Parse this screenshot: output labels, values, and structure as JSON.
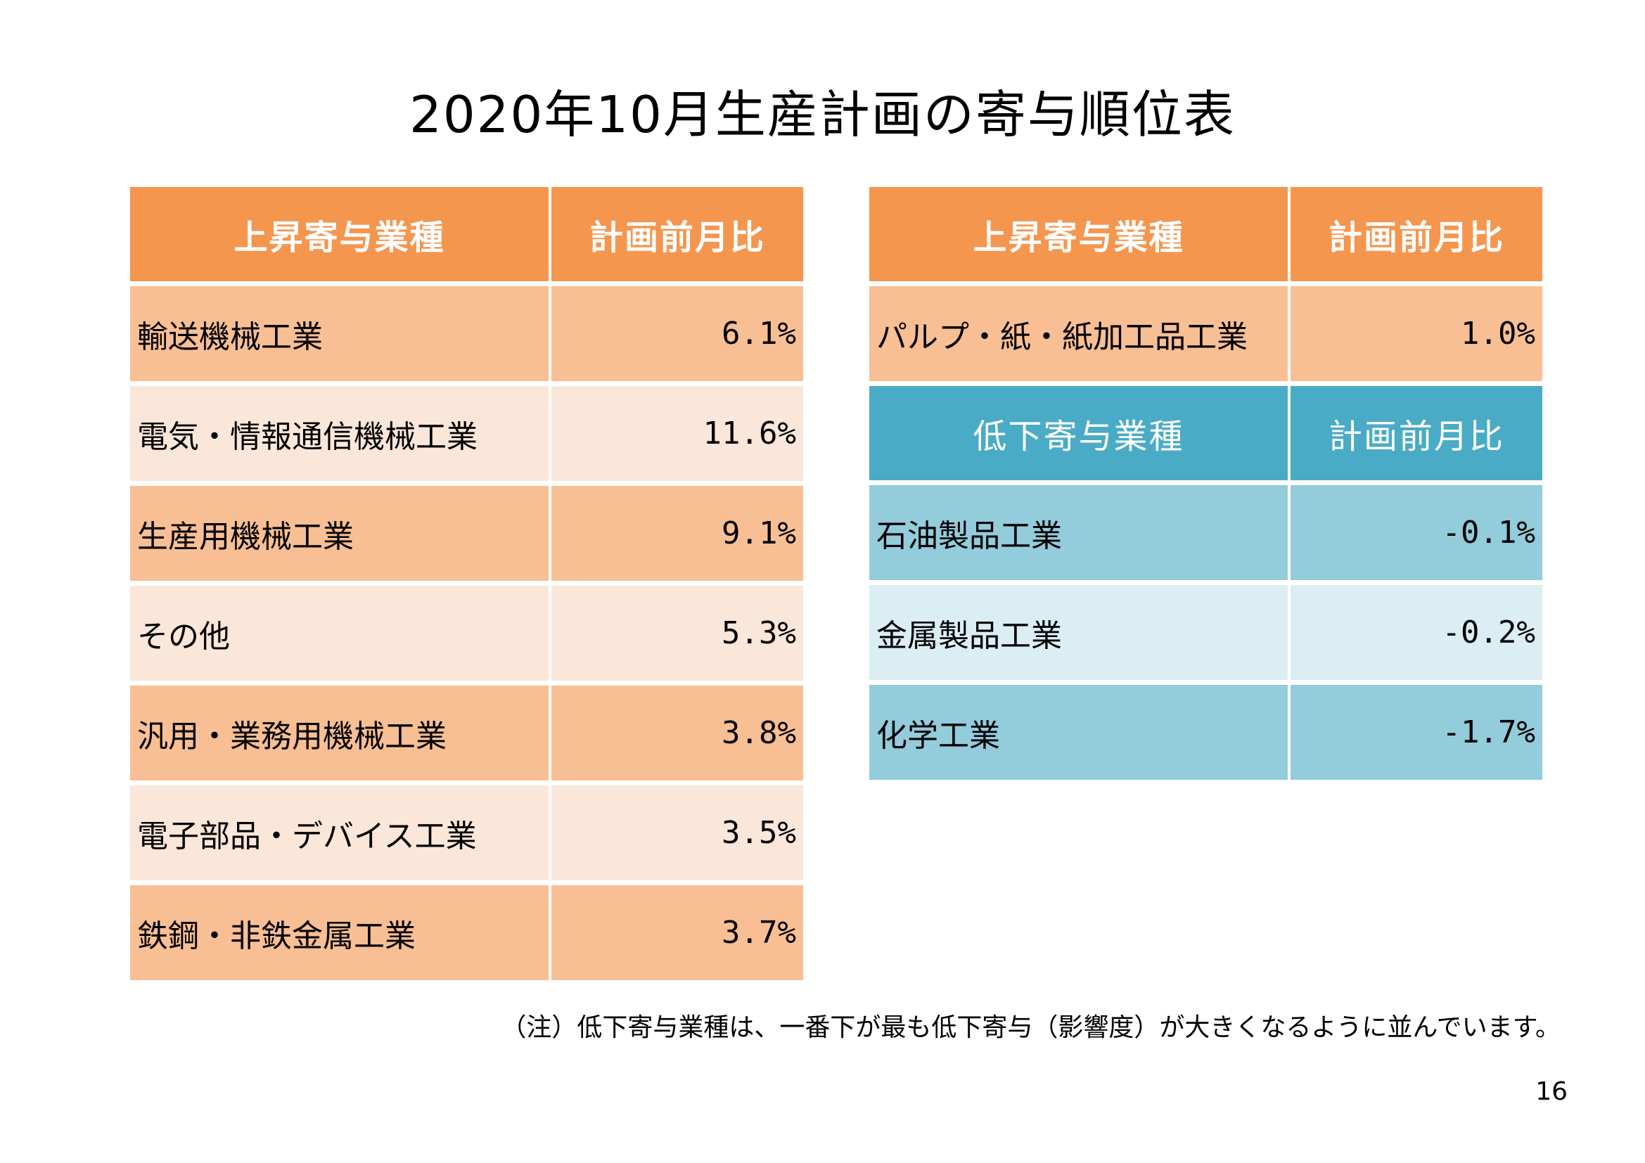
{
  "title": "2020年10月生産計画の寄与順位表",
  "colors": {
    "orange_header": "#f5964f",
    "orange_row_dark": "#f8bf94",
    "orange_row_light": "#fbe7d9",
    "blue_header": "#4aabc6",
    "blue_row_dark": "#93ccdb",
    "blue_row_light": "#daeef4"
  },
  "left_table": {
    "header": {
      "name": "上昇寄与業種",
      "value": "計画前月比"
    },
    "rows": [
      {
        "name": "輸送機械工業",
        "value": "6.1%"
      },
      {
        "name": "電気・情報通信機械工業",
        "value": "11.6%"
      },
      {
        "name": "生産用機械工業",
        "value": "9.1%"
      },
      {
        "name": "その他",
        "value": "5.3%"
      },
      {
        "name": "汎用・業務用機械工業",
        "value": "3.8%"
      },
      {
        "name": "電子部品・デバイス工業",
        "value": "3.5%"
      },
      {
        "name": "鉄鋼・非鉄金属工業",
        "value": "3.7%"
      }
    ]
  },
  "right_table": {
    "rise_header": {
      "name": "上昇寄与業種",
      "value": "計画前月比"
    },
    "rise_rows": [
      {
        "name": "パルプ・紙・紙加工品工業",
        "value": "1.0%"
      }
    ],
    "fall_header": {
      "name": "低下寄与業種",
      "value": "計画前月比"
    },
    "fall_rows": [
      {
        "name": "石油製品工業",
        "value": "-0.1%"
      },
      {
        "name": "金属製品工業",
        "value": "-0.2%"
      },
      {
        "name": "化学工業",
        "value": "-1.7%"
      }
    ]
  },
  "note": "（注）低下寄与業種は、一番下が最も低下寄与（影響度）が大きくなるように並んでいます。",
  "page_number": "16"
}
